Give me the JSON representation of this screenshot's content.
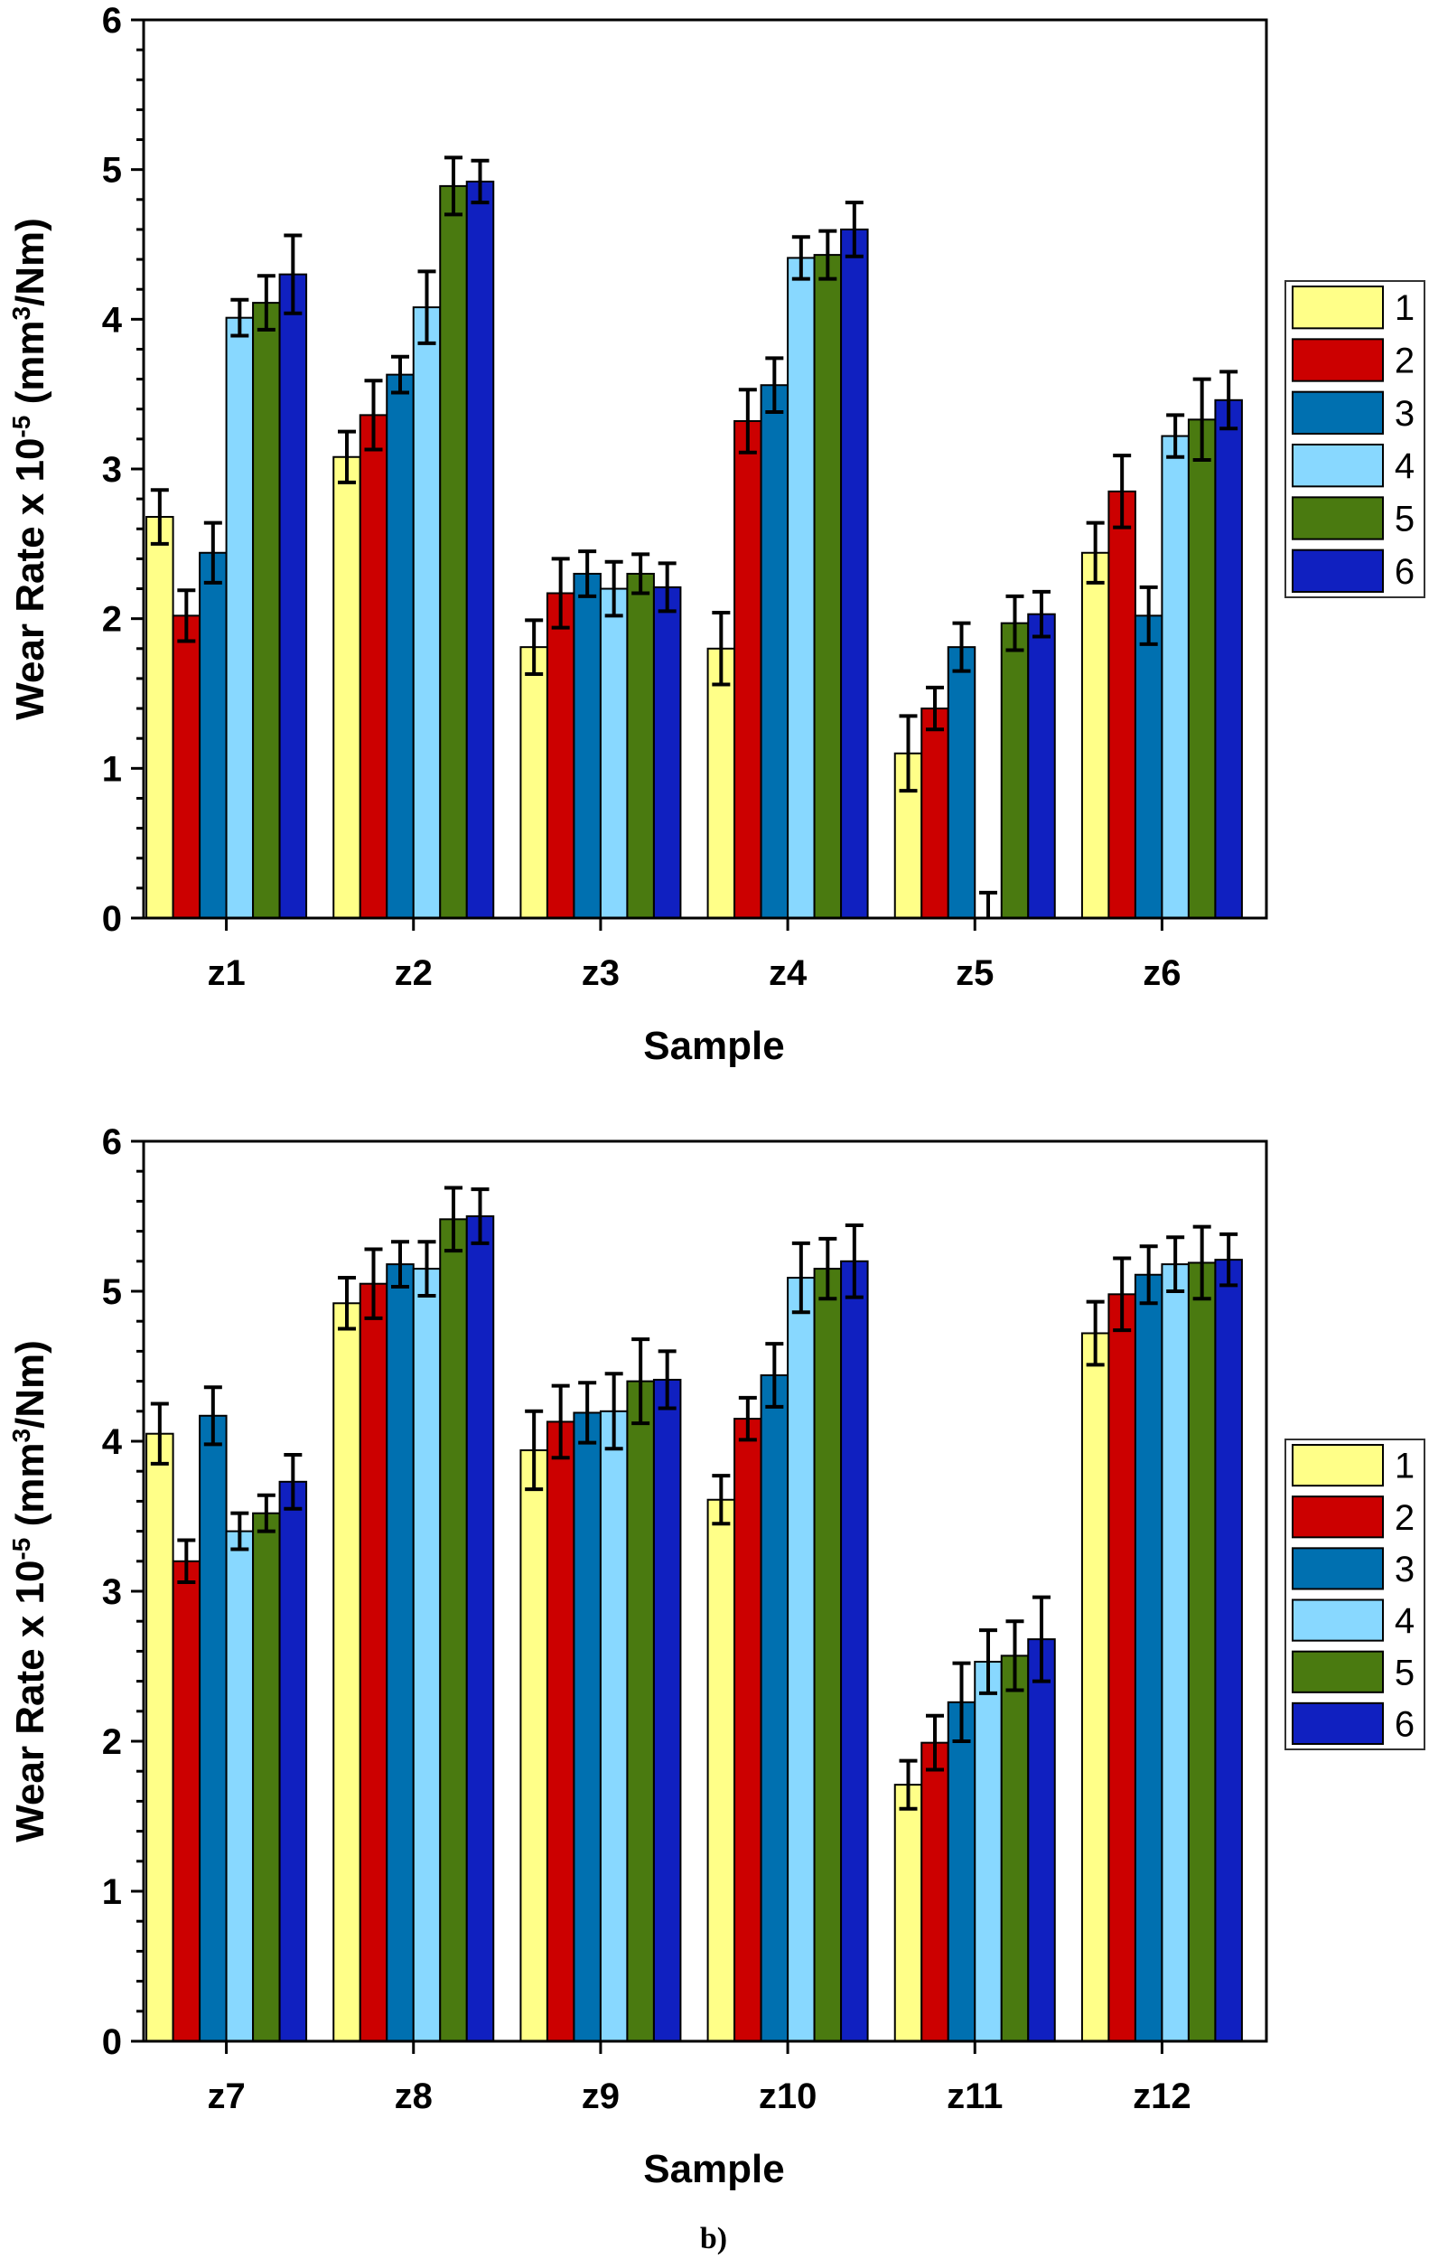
{
  "caption": "b)",
  "series_colors": [
    "#ffff88",
    "#cc0000",
    "#0070b0",
    "#88d8ff",
    "#4a7a10",
    "#1020c0"
  ],
  "chart_data": [
    {
      "type": "bar",
      "xlabel": "Sample",
      "ylabel_parts": [
        "Wear Rate x 10",
        "-5",
        " (mm",
        "3",
        "/Nm)"
      ],
      "ylim": [
        0,
        6
      ],
      "yticks": [
        "0",
        "1",
        "2",
        "3",
        "4",
        "5",
        "6"
      ],
      "grid": false,
      "legend_position": "right",
      "categories": [
        "z1",
        "z2",
        "z3",
        "z4",
        "z5",
        "z6"
      ],
      "series": [
        {
          "name": "1",
          "values": [
            2.68,
            3.08,
            1.81,
            1.8,
            1.1,
            2.44
          ],
          "errors": [
            0.18,
            0.17,
            0.18,
            0.24,
            0.25,
            0.2
          ]
        },
        {
          "name": "2",
          "values": [
            2.02,
            3.36,
            2.17,
            3.32,
            1.4,
            2.85
          ],
          "errors": [
            0.17,
            0.23,
            0.23,
            0.21,
            0.14,
            0.24
          ]
        },
        {
          "name": "3",
          "values": [
            2.44,
            3.63,
            2.3,
            3.56,
            1.81,
            2.02
          ],
          "errors": [
            0.2,
            0.12,
            0.15,
            0.18,
            0.16,
            0.19
          ]
        },
        {
          "name": "4",
          "values": [
            4.01,
            4.08,
            2.2,
            4.41,
            0.0,
            3.22
          ],
          "errors": [
            0.12,
            0.24,
            0.18,
            0.14,
            0.17,
            0.14
          ]
        },
        {
          "name": "5",
          "values": [
            4.11,
            4.89,
            2.3,
            4.43,
            1.97,
            3.33
          ],
          "errors": [
            0.18,
            0.19,
            0.13,
            0.16,
            0.18,
            0.27
          ]
        },
        {
          "name": "6",
          "values": [
            4.3,
            4.92,
            2.21,
            4.6,
            2.03,
            3.46
          ],
          "errors": [
            0.26,
            0.14,
            0.16,
            0.18,
            0.15,
            0.19
          ]
        }
      ]
    },
    {
      "type": "bar",
      "xlabel": "Sample",
      "ylabel_parts": [
        "Wear Rate x 10",
        "-5",
        " (mm",
        "3",
        "/Nm)"
      ],
      "ylim": [
        0,
        6
      ],
      "yticks": [
        "0",
        "1",
        "2",
        "3",
        "4",
        "5",
        "6"
      ],
      "grid": false,
      "legend_position": "right",
      "categories": [
        "z7",
        "z8",
        "z9",
        "z10",
        "z11",
        "z12"
      ],
      "series": [
        {
          "name": "1",
          "values": [
            4.05,
            4.92,
            3.94,
            3.61,
            1.71,
            4.72
          ],
          "errors": [
            0.2,
            0.17,
            0.26,
            0.16,
            0.16,
            0.21
          ]
        },
        {
          "name": "2",
          "values": [
            3.2,
            5.05,
            4.13,
            4.15,
            1.99,
            4.98
          ],
          "errors": [
            0.14,
            0.23,
            0.24,
            0.14,
            0.18,
            0.24
          ]
        },
        {
          "name": "3",
          "values": [
            4.17,
            5.18,
            4.19,
            4.44,
            2.26,
            5.11
          ],
          "errors": [
            0.19,
            0.15,
            0.2,
            0.21,
            0.26,
            0.19
          ]
        },
        {
          "name": "4",
          "values": [
            3.4,
            5.15,
            4.2,
            5.09,
            2.53,
            5.18
          ],
          "errors": [
            0.12,
            0.18,
            0.25,
            0.23,
            0.21,
            0.18
          ]
        },
        {
          "name": "5",
          "values": [
            3.52,
            5.48,
            4.4,
            5.15,
            2.57,
            5.19
          ],
          "errors": [
            0.12,
            0.21,
            0.28,
            0.2,
            0.23,
            0.24
          ]
        },
        {
          "name": "6",
          "values": [
            3.73,
            5.5,
            4.41,
            5.2,
            2.68,
            5.21
          ],
          "errors": [
            0.18,
            0.18,
            0.19,
            0.24,
            0.28,
            0.17
          ]
        }
      ]
    }
  ]
}
